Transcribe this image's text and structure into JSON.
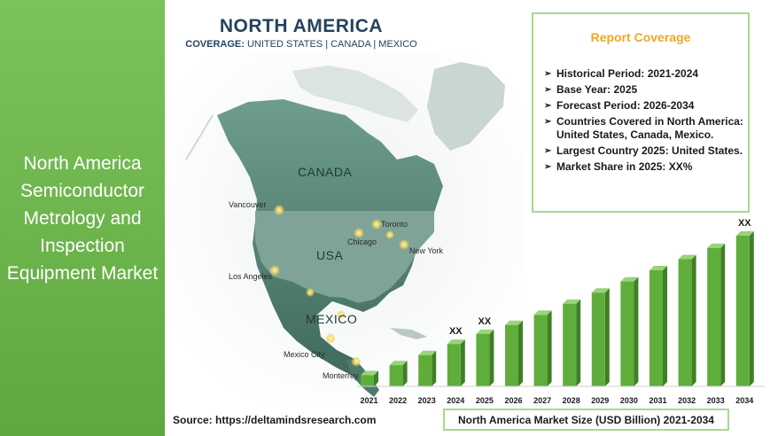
{
  "left_title": "North America Semiconductor Metrology and Inspection Equipment Market",
  "map": {
    "heading": "NORTH AMERICA",
    "coverage_label": "COVERAGE:",
    "coverage_countries": " UNITED STATES | CANADA | MEXICO",
    "countries": [
      "CANADA",
      "USA",
      "MEXICO"
    ],
    "cities": [
      "Vancouver",
      "Toronto",
      "Chicago",
      "New York",
      "Los Angeles",
      "Mexico City",
      "Monterrey"
    ]
  },
  "report": {
    "title": "Report Coverage",
    "items": [
      "Historical Period: 2021-2024",
      "Base Year: 2025",
      "Forecast Period: 2026-2034",
      "Countries Covered in North America: United States, Canada, Mexico.",
      "Largest Country 2025: United States.",
      "Market Share in 2025: XX%"
    ]
  },
  "chart_data": {
    "type": "bar",
    "categories": [
      "2021",
      "2022",
      "2023",
      "2024",
      "2025",
      "2026",
      "2027",
      "2028",
      "2029",
      "2030",
      "2031",
      "2032",
      "2033",
      "2034"
    ],
    "values": [
      1.0,
      1.9,
      2.8,
      3.8,
      4.7,
      5.5,
      6.4,
      7.4,
      8.4,
      9.4,
      10.4,
      11.4,
      12.4,
      13.5
    ],
    "data_labels": {
      "2024": "XX",
      "2025": "XX",
      "2034": "XX"
    },
    "title": "North America Market Size (USD Billion) 2021-2034",
    "bar_color": "#5fae3c"
  },
  "source": "Source: https://deltamindsresearch.com",
  "caption": "North America Market Size (USD Billion) 2021-2034"
}
